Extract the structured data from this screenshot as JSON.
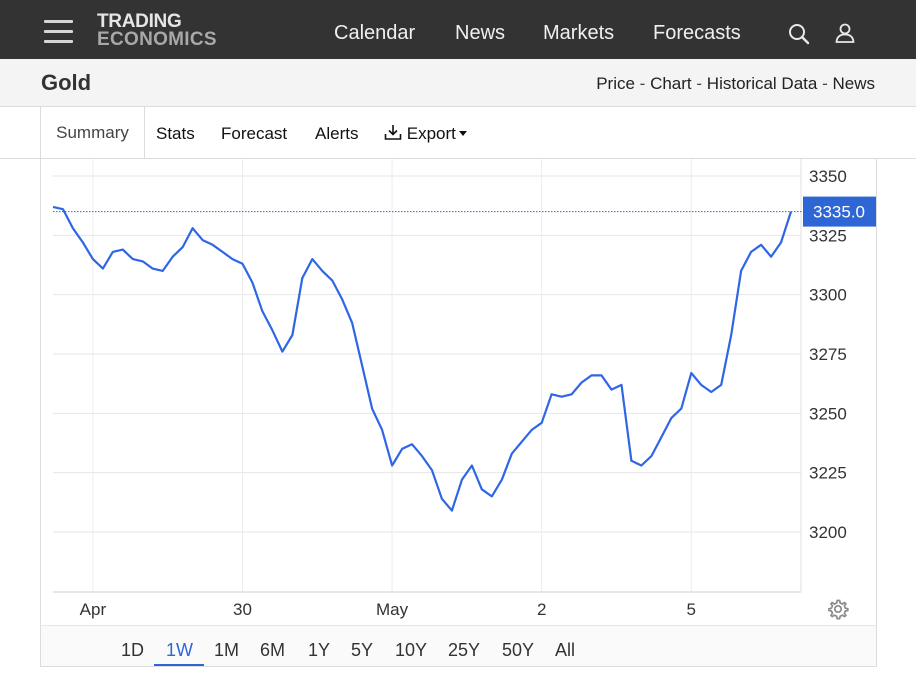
{
  "header": {
    "logo_line1": "TRADING",
    "logo_line2": "ECONOMICS",
    "nav": [
      "Calendar",
      "News",
      "Markets",
      "Forecasts"
    ],
    "icons": [
      "menu-icon",
      "search-icon",
      "user-icon"
    ]
  },
  "subheader": {
    "title": "Gold",
    "links": [
      "Price",
      "Chart",
      "Historical Data",
      "News"
    ],
    "separator": "-"
  },
  "tabs": {
    "summary": "Summary",
    "stats": "Stats",
    "forecast": "Forecast",
    "alerts": "Alerts",
    "export": "Export"
  },
  "ranges": {
    "items": [
      "1D",
      "1W",
      "1M",
      "6M",
      "1Y",
      "5Y",
      "10Y",
      "25Y",
      "50Y",
      "All"
    ],
    "selected": "1W"
  },
  "colors": {
    "line": "#2f66e6",
    "accent": "#2f66d6",
    "topbar": "#333333"
  },
  "chart_data": {
    "type": "line",
    "series_color": "#2f66e6",
    "current_value_label": "3335.0",
    "current_value": 3335.0,
    "ylim": [
      3180,
      3355
    ],
    "yticks": [
      3200,
      3225,
      3250,
      3275,
      3300,
      3325,
      3350
    ],
    "xtick_labels": [
      "Apr",
      "30",
      "May",
      "2",
      "5"
    ],
    "xtick_index": [
      4,
      19,
      34,
      49,
      64
    ],
    "x_count": 75,
    "grid": true,
    "legend": "none",
    "values": [
      3337,
      3336,
      3328,
      3322,
      3315,
      3311,
      3318,
      3319,
      3315,
      3314,
      3311,
      3310,
      3316,
      3320,
      3328,
      3323,
      3321,
      3318,
      3315,
      3313,
      3305,
      3293,
      3285,
      3276,
      3283,
      3307,
      3315,
      3310,
      3306,
      3298,
      3288,
      3270,
      3252,
      3243,
      3228,
      3235,
      3237,
      3232,
      3226,
      3214,
      3209,
      3222,
      3228,
      3218,
      3215,
      3222,
      3233,
      3238,
      3243,
      3246,
      3258,
      3257,
      3258,
      3263,
      3266,
      3266,
      3260,
      3262,
      3230,
      3228,
      3232,
      3240,
      3248,
      3252,
      3267,
      3262,
      3259,
      3262,
      3283,
      3310,
      3318,
      3321,
      3316,
      3322,
      3335
    ]
  }
}
